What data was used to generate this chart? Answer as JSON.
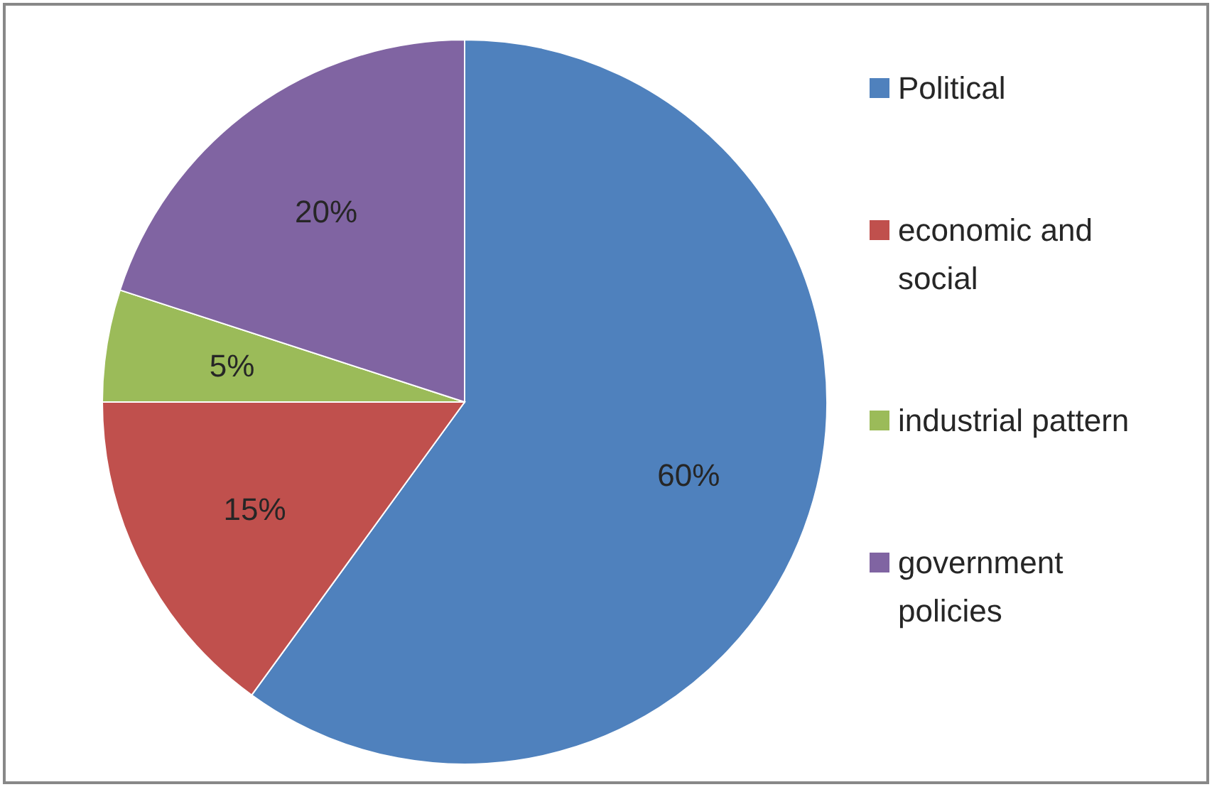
{
  "chart_data": {
    "type": "pie",
    "categories": [
      "Political",
      "economic and social",
      "industrial pattern",
      "government policies"
    ],
    "values": [
      60,
      15,
      5,
      20
    ],
    "colors": [
      "#4f81bd",
      "#c0504d",
      "#9bbb59",
      "#8064a2"
    ],
    "value_labels": [
      "60%",
      "15%",
      "5%",
      "20%"
    ],
    "legend": "right"
  }
}
